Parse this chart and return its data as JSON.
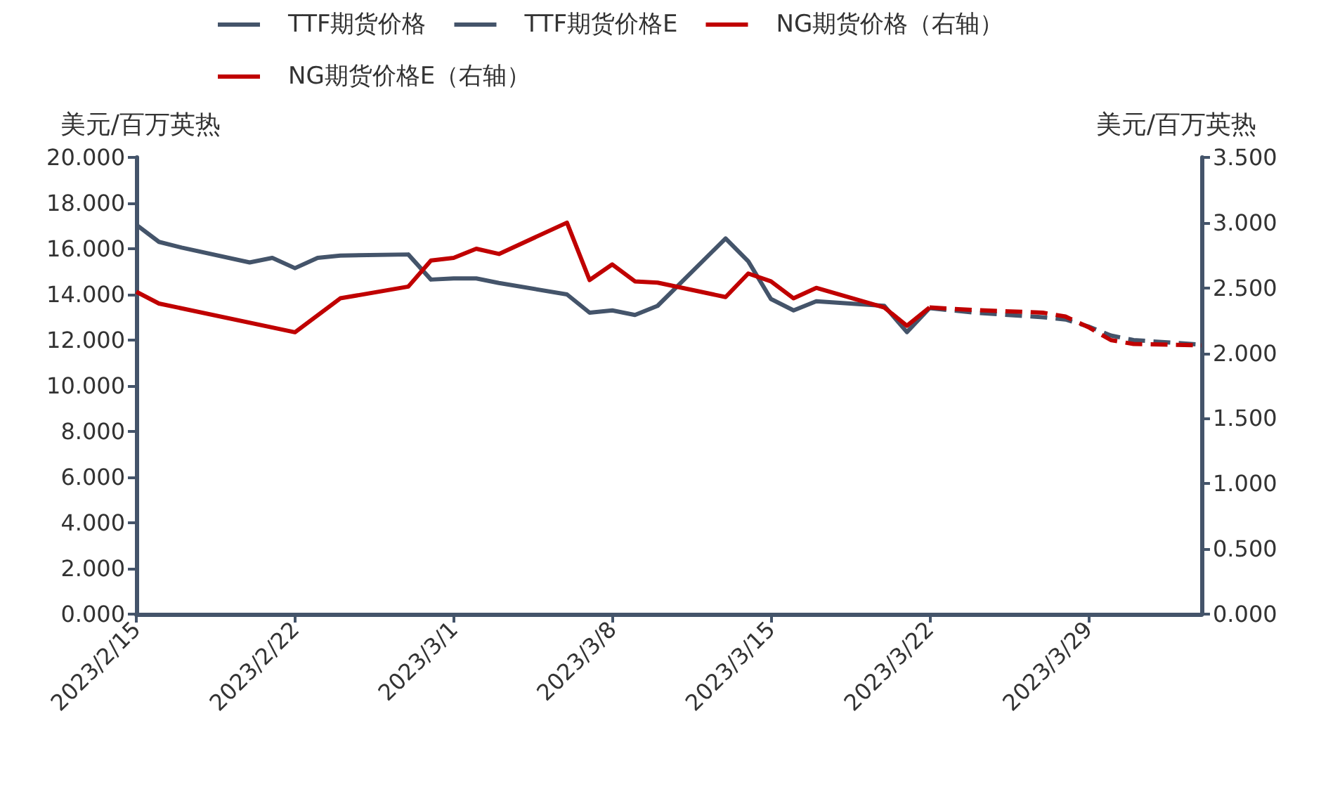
{
  "chart_data": {
    "type": "line",
    "ylabel": "美元/百万英热",
    "y2label": "美元/百万英热",
    "legend": "top",
    "grid": false,
    "marker": "none",
    "xlim": [
      "2023-02-15",
      "2023-04-03"
    ],
    "xticks": [
      {
        "value": "2023-02-15",
        "label": "2023/2/15"
      },
      {
        "value": "2023-02-22",
        "label": "2023/2/22"
      },
      {
        "value": "2023-03-01",
        "label": "2023/3/1"
      },
      {
        "value": "2023-03-08",
        "label": "2023/3/8"
      },
      {
        "value": "2023-03-15",
        "label": "2023/3/15"
      },
      {
        "value": "2023-03-22",
        "label": "2023/3/22"
      },
      {
        "value": "2023-03-29",
        "label": "2023/3/29"
      }
    ],
    "ylim": [
      0,
      20
    ],
    "yticks": [
      {
        "value": 0,
        "label": "0.000"
      },
      {
        "value": 2,
        "label": "2.000"
      },
      {
        "value": 4,
        "label": "4.000"
      },
      {
        "value": 6,
        "label": "6.000"
      },
      {
        "value": 8,
        "label": "8.000"
      },
      {
        "value": 10,
        "label": "10.000"
      },
      {
        "value": 12,
        "label": "12.000"
      },
      {
        "value": 14,
        "label": "14.000"
      },
      {
        "value": 16,
        "label": "16.000"
      },
      {
        "value": 18,
        "label": "18.000"
      },
      {
        "value": 20,
        "label": "20.000"
      }
    ],
    "y2lim": [
      0,
      3.5
    ],
    "y2ticks": [
      {
        "value": 0,
        "label": "0.000"
      },
      {
        "value": 0.5,
        "label": "0.500"
      },
      {
        "value": 1,
        "label": "1.000"
      },
      {
        "value": 1.5,
        "label": "1.500"
      },
      {
        "value": 2,
        "label": "2.000"
      },
      {
        "value": 2.5,
        "label": "2.500"
      },
      {
        "value": 3,
        "label": "3.000"
      },
      {
        "value": 3.5,
        "label": "3.500"
      }
    ],
    "series": [
      {
        "name": "TTF期货价格",
        "color": "#44546a",
        "line_style": "solid",
        "x": [
          "2023-02-15",
          "2023-02-16",
          "2023-02-17",
          "2023-02-20",
          "2023-02-21",
          "2023-02-22",
          "2023-02-23",
          "2023-02-24",
          "2023-02-27",
          "2023-02-28",
          "2023-03-01",
          "2023-03-02",
          "2023-03-03",
          "2023-03-06",
          "2023-03-07",
          "2023-03-08",
          "2023-03-09",
          "2023-03-10",
          "2023-03-13",
          "2023-03-14",
          "2023-03-15",
          "2023-03-16",
          "2023-03-17",
          "2023-03-20",
          "2023-03-21",
          "2023-03-22"
        ],
        "values": [
          17.05,
          16.3,
          16.05,
          15.4,
          15.6,
          15.15,
          15.6,
          15.7,
          15.75,
          14.65,
          14.7,
          14.7,
          14.5,
          14.0,
          13.2,
          13.3,
          13.1,
          13.5,
          16.45,
          15.45,
          13.8,
          13.3,
          13.7,
          13.5,
          12.35,
          13.4
        ]
      },
      {
        "name": "TTF期货价格E",
        "color": "#44546a",
        "line_style": "dashed",
        "x": [
          "2023-03-22",
          "2023-03-23",
          "2023-03-24",
          "2023-03-27",
          "2023-03-28",
          "2023-03-29",
          "2023-03-30",
          "2023-03-31",
          "2023-04-03"
        ],
        "values": [
          13.4,
          13.3,
          13.2,
          13.0,
          12.9,
          12.6,
          12.2,
          12.0,
          11.8
        ]
      },
      {
        "name": "NG期货价格（右轴）",
        "color": "#c00000",
        "line_style": "solid",
        "axis": "y2",
        "x": [
          "2023-02-15",
          "2023-02-16",
          "2023-02-22",
          "2023-02-24",
          "2023-02-27",
          "2023-02-28",
          "2023-03-01",
          "2023-03-02",
          "2023-03-03",
          "2023-03-06",
          "2023-03-07",
          "2023-03-08",
          "2023-03-09",
          "2023-03-10",
          "2023-03-13",
          "2023-03-14",
          "2023-03-15",
          "2023-03-16",
          "2023-03-17",
          "2023-03-20",
          "2023-03-21",
          "2023-03-22"
        ],
        "values": [
          2.47,
          2.38,
          2.16,
          2.42,
          2.51,
          2.71,
          2.73,
          2.8,
          2.76,
          3.0,
          2.56,
          2.68,
          2.55,
          2.54,
          2.43,
          2.61,
          2.55,
          2.42,
          2.5,
          2.35,
          2.21,
          2.35
        ]
      },
      {
        "name": "NG期货价格E（右轴）",
        "color": "#c00000",
        "line_style": "dashed",
        "axis": "y2",
        "x": [
          "2023-03-22",
          "2023-03-23",
          "2023-03-24",
          "2023-03-27",
          "2023-03-28",
          "2023-03-29",
          "2023-03-30",
          "2023-03-31",
          "2023-04-03"
        ],
        "values": [
          2.35,
          2.34,
          2.33,
          2.31,
          2.28,
          2.2,
          2.1,
          2.07,
          2.06
        ]
      }
    ]
  }
}
